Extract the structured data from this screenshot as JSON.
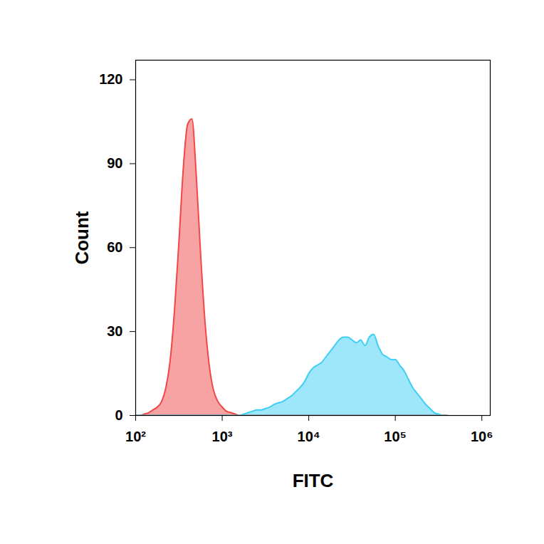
{
  "chart_data": {
    "type": "area",
    "xlabel": "FITC",
    "ylabel": "Count",
    "log": "x",
    "xlim": [
      100,
      1250000
    ],
    "ylim": [
      0,
      127
    ],
    "xticks": [
      {
        "value": 100,
        "label": "10²"
      },
      {
        "value": 1000,
        "label": "10³"
      },
      {
        "value": 10000,
        "label": "10⁴"
      },
      {
        "value": 100000,
        "label": "10⁵"
      },
      {
        "value": 1000000,
        "label": "10⁶"
      }
    ],
    "yticks": [
      0,
      30,
      60,
      90,
      120
    ],
    "x": [
      100,
      112.2,
      125.9,
      141.3,
      158.5,
      177.8,
      199.5,
      223.9,
      251.2,
      281.8,
      316.2,
      354.8,
      398.1,
      446.7,
      501.2,
      562.3,
      631,
      707.9,
      794.3,
      891.3,
      1000,
      1122,
      1259,
      1413,
      1585,
      1778,
      1995,
      2239,
      2512,
      2818,
      3162,
      3548,
      3981,
      4467,
      5012,
      5623,
      6310,
      7079,
      7943,
      8913,
      10000,
      11220,
      12590,
      14130,
      15850,
      17780,
      19950,
      22390,
      25120,
      28180,
      31620,
      35480,
      39810,
      44670,
      50120,
      56230,
      63100,
      70790,
      79430,
      89130,
      100000,
      112200,
      125900,
      141300,
      158500,
      177800,
      199500,
      223900,
      251200,
      281800,
      316200,
      354800,
      398100
    ],
    "series": [
      {
        "color": "#f04848",
        "values": [
          0,
          0,
          0.5,
          1,
          2,
          3,
          5,
          10,
          20,
          38,
          62,
          88,
          104,
          106,
          86,
          58,
          34,
          18,
          9,
          5,
          3,
          1.5,
          1,
          0.5,
          0,
          0,
          0,
          0,
          0,
          0,
          0,
          0,
          0,
          0,
          0,
          0,
          0,
          0,
          0,
          0,
          0,
          0,
          0,
          0,
          0,
          0,
          0,
          0,
          0,
          0,
          0,
          0,
          0,
          0,
          0,
          0,
          0,
          0,
          0,
          0,
          0,
          0,
          0,
          0,
          0,
          0,
          0,
          0,
          0,
          0,
          0,
          0,
          0
        ]
      },
      {
        "color": "#3ecff5",
        "values": [
          0,
          0,
          0,
          0,
          0,
          0,
          0,
          0,
          0,
          0,
          0,
          0,
          0,
          0,
          0,
          0,
          0,
          0,
          0,
          0,
          0,
          0,
          0,
          0,
          0,
          0.5,
          1,
          1.5,
          2,
          2,
          2.5,
          3,
          4,
          4.5,
          5,
          6,
          7,
          8.5,
          10,
          12,
          15,
          17,
          18,
          19,
          21,
          23,
          25,
          27,
          28,
          28,
          27,
          26,
          27,
          25,
          28,
          29,
          25,
          22,
          21,
          20,
          20,
          18,
          16,
          13,
          10,
          8,
          6,
          4,
          2.5,
          1,
          0.5,
          0,
          0
        ]
      }
    ]
  }
}
